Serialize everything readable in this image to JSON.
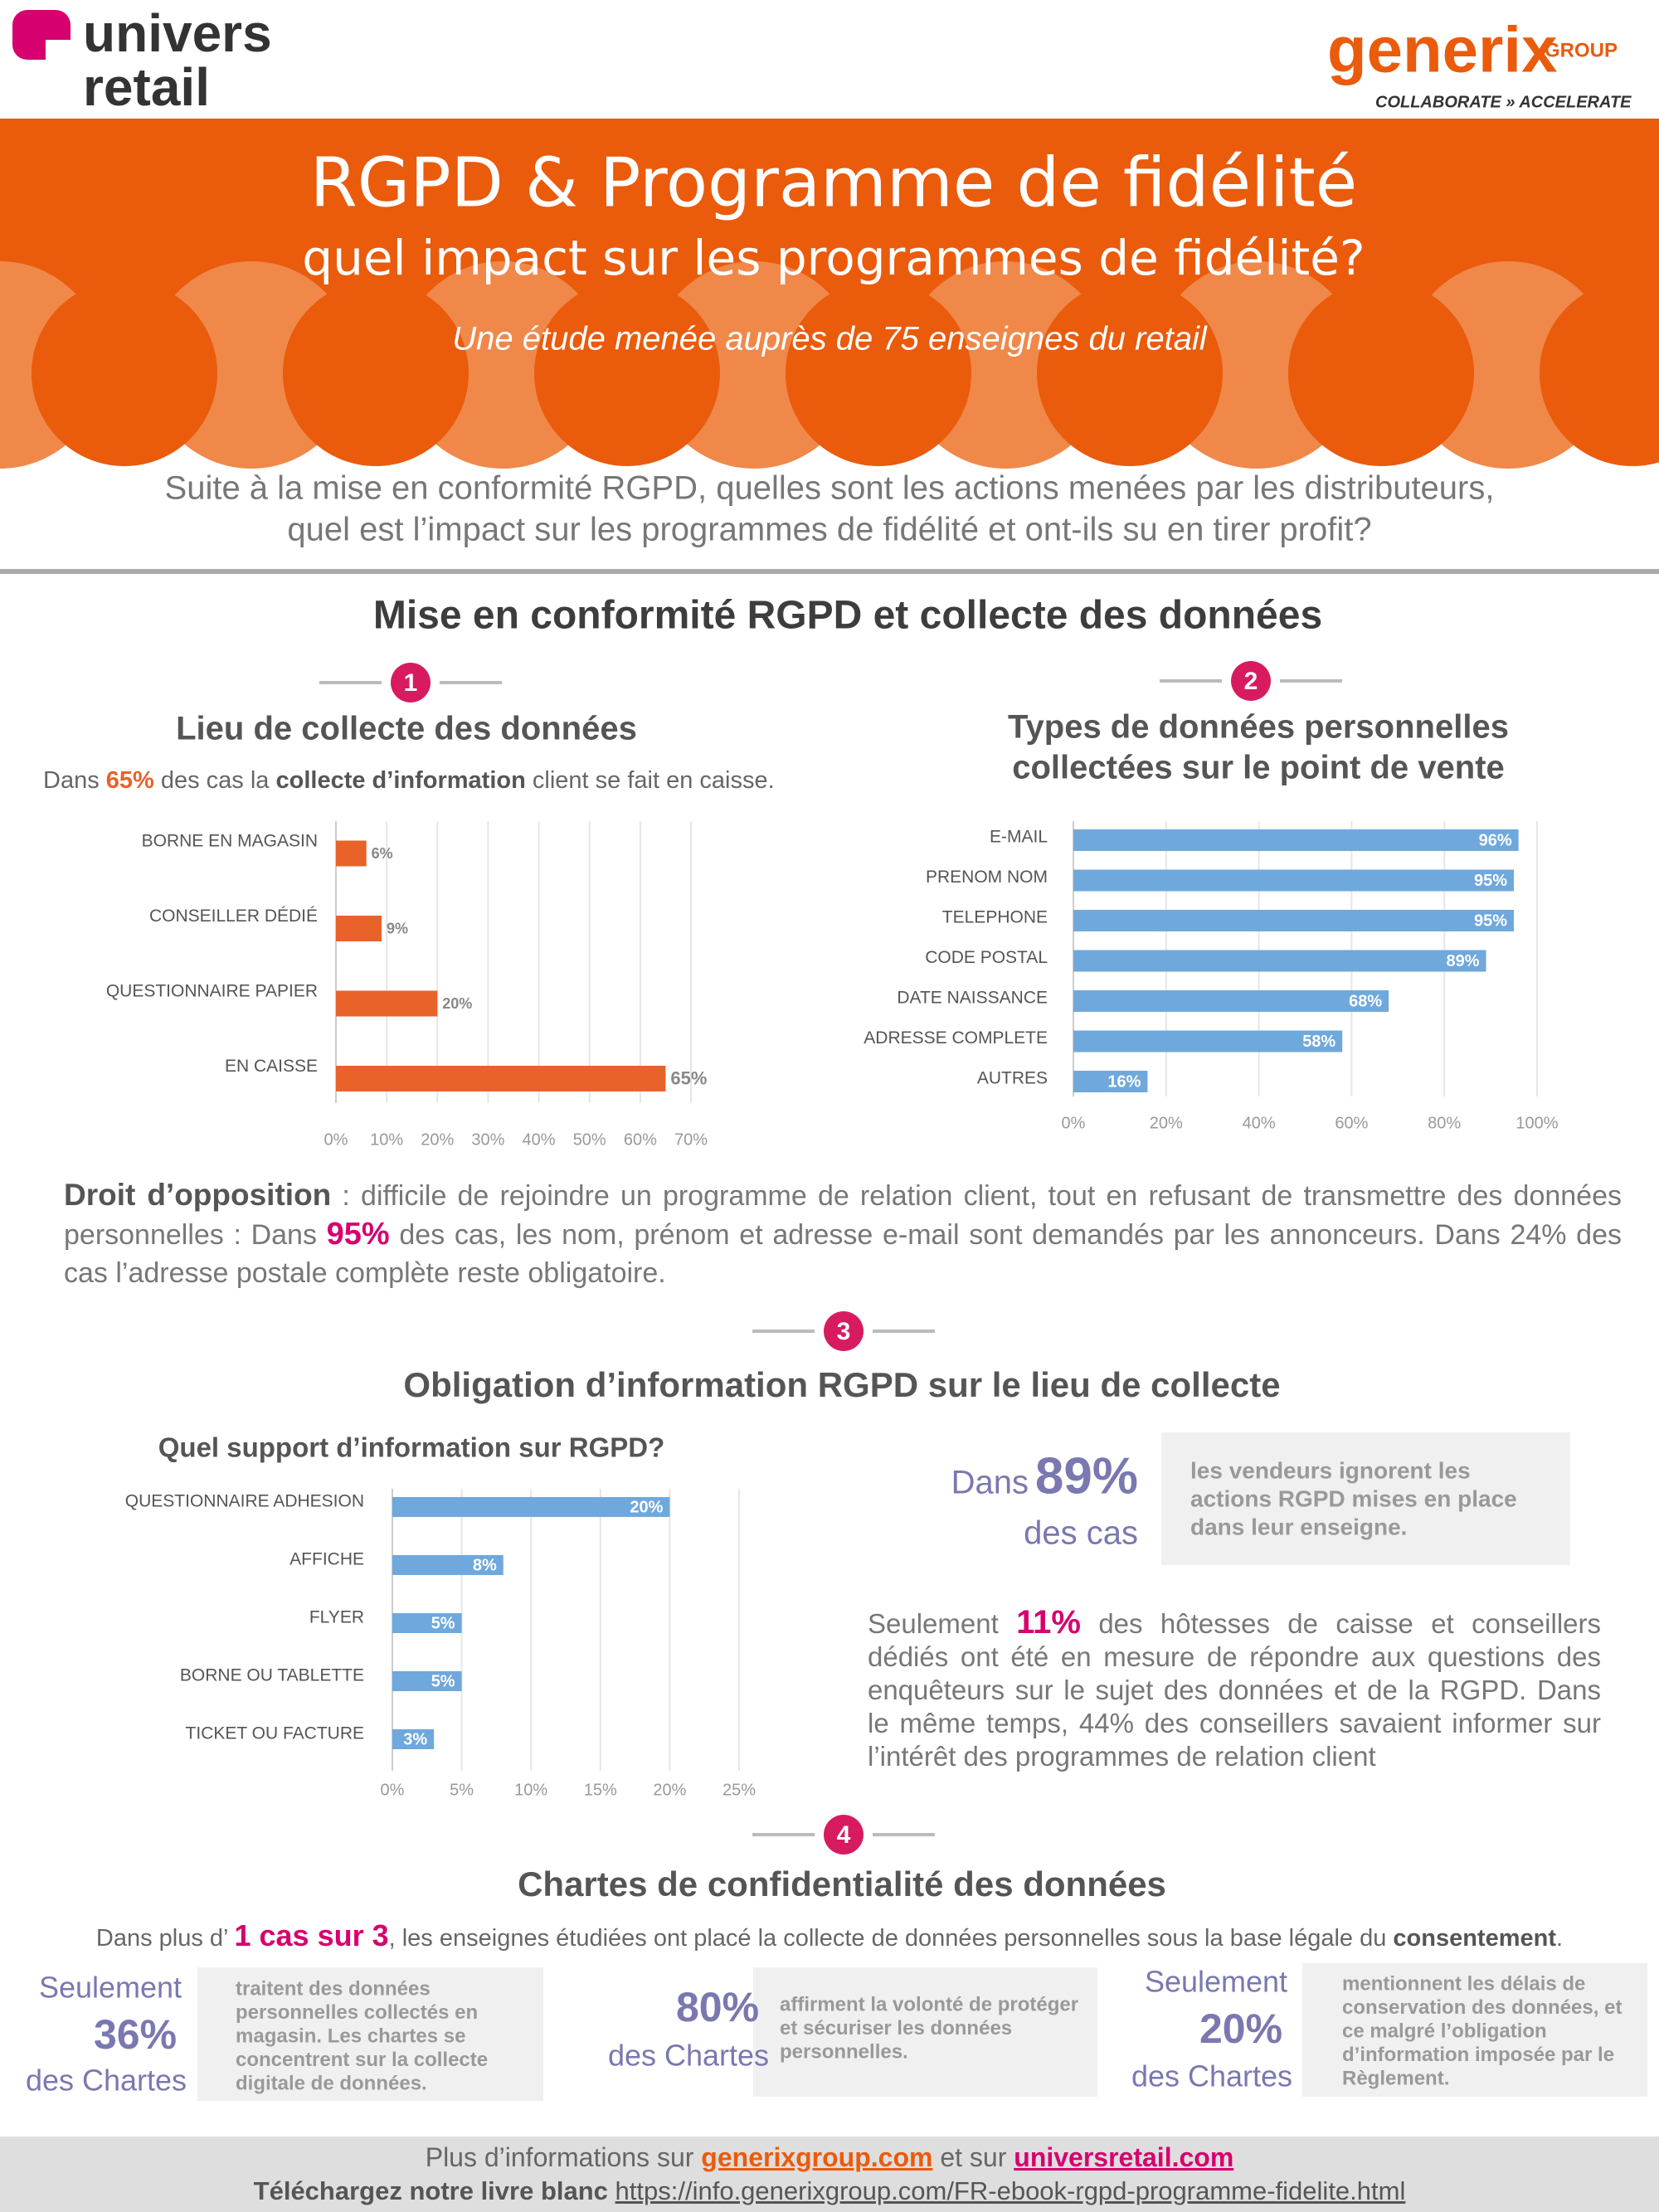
{
  "header": {
    "logo_left": [
      "univers",
      "retail"
    ],
    "logo_right": "generix",
    "logo_right_group": "GROUP",
    "tagline": "COLLABORATE » ACCELERATE",
    "title": "RGPD & Programme de fidélité",
    "subtitle": "quel impact sur les programmes de fidélité?",
    "study": "Une étude menée auprès de 75 enseignes du retail"
  },
  "intro": [
    "Suite à la mise en conformité RGPD, quelles sont les actions menées par les distributeurs,",
    "quel est l’impact sur les programmes de fidélité et ont-ils su en tirer profit?"
  ],
  "section1": {
    "heading": "Mise en conformité RGPD et collecte des données",
    "steps": [
      "1",
      "2"
    ],
    "stat": [
      "Dans ",
      "65%",
      " des cas la ",
      "collecte d’information",
      " client se fait en caisse."
    ]
  },
  "opposition": [
    "Droit d’opposition",
    " : difficile de rejoindre un programme de relation client, tout en refusant de transmettre des données personnelles : Dans ",
    "95%",
    " des cas, les nom, prénom et adresse e-mail sont demandés par les annonceurs. Dans 24% des cas l’adresse postale complète reste obligatoire."
  ],
  "section3": {
    "step": "3",
    "heading": "Obligation d’information RGPD sur le lieu de collecte",
    "callout": {
      "prefix": "Dans",
      "value": "89%",
      "suffix": "des cas",
      "text": [
        "les vendeurs ignorent les",
        "actions RGPD mises en place",
        "dans leur enseigne."
      ]
    },
    "paragraph": [
      "Seulement ",
      "11%",
      " des hôtesses de caisse et conseillers dédiés ont été en mesure de répondre aux questions des enquêteurs sur le sujet des données et de la RGPD. Dans le même temps, 44% des conseillers savaient informer sur l’intérêt des programmes de relation client"
    ]
  },
  "section4": {
    "step": "4",
    "heading": "Chartes de confidentialité des données",
    "intro": [
      "Dans plus d’ ",
      "1 cas sur 3",
      ", les enseignes étudiées ont placé la collecte de données personnelles sous la base légale du ",
      "consentement",
      "."
    ],
    "stats": [
      {
        "prefix": "Seulement",
        "value": "36%",
        "suffix": "des Chartes",
        "text": [
          "traitent des données",
          "personnelles collectés en",
          "magasin. Les chartes se",
          "concentrent sur la collecte",
          "digitale de données."
        ]
      },
      {
        "value": "80%",
        "suffix": "des Chartes",
        "text": [
          "affirment la volonté de protéger",
          "et sécuriser les données",
          "personnelles."
        ]
      },
      {
        "prefix": "Seulement",
        "value": "20%",
        "suffix": "des Chartes",
        "text": [
          "mentionnent les délais de",
          "conservation des données, et",
          "ce malgré l’obligation",
          "d’information imposée par le",
          "Règlement."
        ]
      }
    ]
  },
  "footer": {
    "line1": [
      "Plus d’informations sur ",
      "generixgroup.com",
      " et sur ",
      "universretail.com"
    ],
    "line2": [
      "Téléchargez notre livre blanc ",
      "https://info.generixgroup.com/FR-ebook-rgpd-programme-fidelite.html"
    ]
  },
  "chart_data": [
    {
      "type": "bar",
      "orientation": "horizontal",
      "title": "Lieu de collecte des données",
      "categories": [
        "BORNE EN MAGASIN",
        "CONSEILLER DÉDIÉ",
        "QUESTIONNAIRE PAPIER",
        "EN CAISSE"
      ],
      "values": [
        6,
        9,
        20,
        65
      ],
      "value_labels": [
        "6%",
        "9%",
        "20%",
        "65%"
      ],
      "color": "#e8622a",
      "xlim": [
        0,
        70
      ],
      "xticks": [
        {
          "value": 0,
          "label": "0%"
        },
        {
          "value": 10,
          "label": "10%"
        },
        {
          "value": 20,
          "label": "20%"
        },
        {
          "value": 30,
          "label": "30%"
        },
        {
          "value": 40,
          "label": "40%"
        },
        {
          "value": 50,
          "label": "50%"
        },
        {
          "value": 60,
          "label": "60%"
        },
        {
          "value": 70,
          "label": "70%"
        }
      ],
      "grid": true
    },
    {
      "type": "bar",
      "orientation": "horizontal",
      "title": [
        "Types de données personnelles",
        "collectées sur le point de vente"
      ],
      "categories": [
        "E-MAIL",
        "PRENOM NOM",
        "TELEPHONE",
        "CODE POSTAL",
        "DATE NAISSANCE",
        "ADRESSE COMPLETE",
        "AUTRES"
      ],
      "values": [
        96,
        95,
        95,
        89,
        68,
        58,
        16
      ],
      "value_labels": [
        "96%",
        "95%",
        "95%",
        "89%",
        "68%",
        "58%",
        "16%"
      ],
      "color": "#6fa8dc",
      "xlim": [
        0,
        100
      ],
      "xticks": [
        {
          "value": 0,
          "label": "0%"
        },
        {
          "value": 20,
          "label": "20%"
        },
        {
          "value": 40,
          "label": "40%"
        },
        {
          "value": 60,
          "label": "60%"
        },
        {
          "value": 80,
          "label": "80%"
        },
        {
          "value": 100,
          "label": "100%"
        }
      ],
      "grid": true
    },
    {
      "type": "bar",
      "orientation": "horizontal",
      "title": "Quel support d’information sur RGPD?",
      "categories": [
        "QUESTIONNAIRE ADHESION",
        "AFFICHE",
        "FLYER",
        "BORNE OU TABLETTE",
        "TICKET OU FACTURE"
      ],
      "values": [
        20,
        8,
        5,
        5,
        3
      ],
      "value_labels": [
        "20%",
        "8%",
        "5%",
        "5%",
        "3%"
      ],
      "color": "#6fa8dc",
      "xlim": [
        0,
        25
      ],
      "xticks": [
        {
          "value": 0,
          "label": "0%"
        },
        {
          "value": 5,
          "label": "5%"
        },
        {
          "value": 10,
          "label": "10%"
        },
        {
          "value": 15,
          "label": "15%"
        },
        {
          "value": 20,
          "label": "20%"
        },
        {
          "value": 25,
          "label": "25%"
        }
      ],
      "grid": true
    }
  ]
}
